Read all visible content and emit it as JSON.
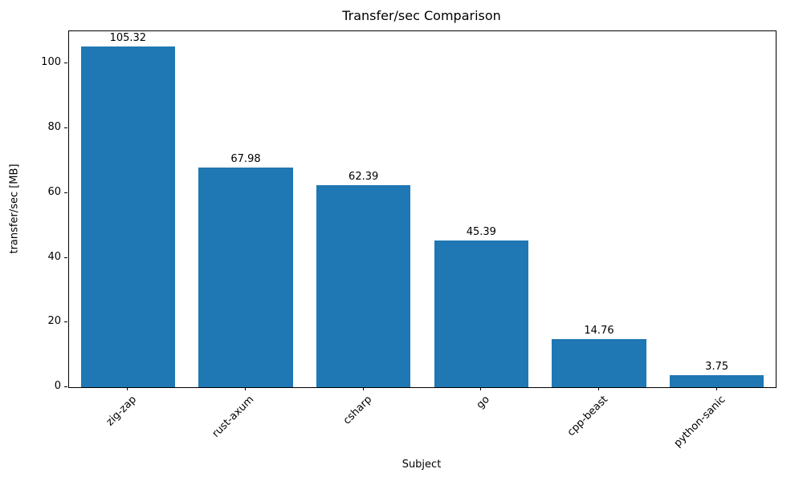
{
  "chart_data": {
    "type": "bar",
    "title": "Transfer/sec Comparison",
    "xlabel": "Subject",
    "ylabel": "transfer/sec [MB]",
    "categories": [
      "zig-zap",
      "rust-axum",
      "csharp",
      "go",
      "cpp-beast",
      "python-sanic"
    ],
    "values": [
      105.32,
      67.98,
      62.39,
      45.39,
      14.76,
      3.75
    ],
    "value_labels": [
      "105.32",
      "67.98",
      "62.39",
      "45.39",
      "14.76",
      "3.75"
    ],
    "ylim": [
      0,
      110
    ],
    "yticks": [
      0,
      20,
      40,
      60,
      80,
      100
    ],
    "bar_color": "#1f77b4",
    "bar_width_fraction": 0.8,
    "grid": false,
    "legend_position": "none"
  }
}
